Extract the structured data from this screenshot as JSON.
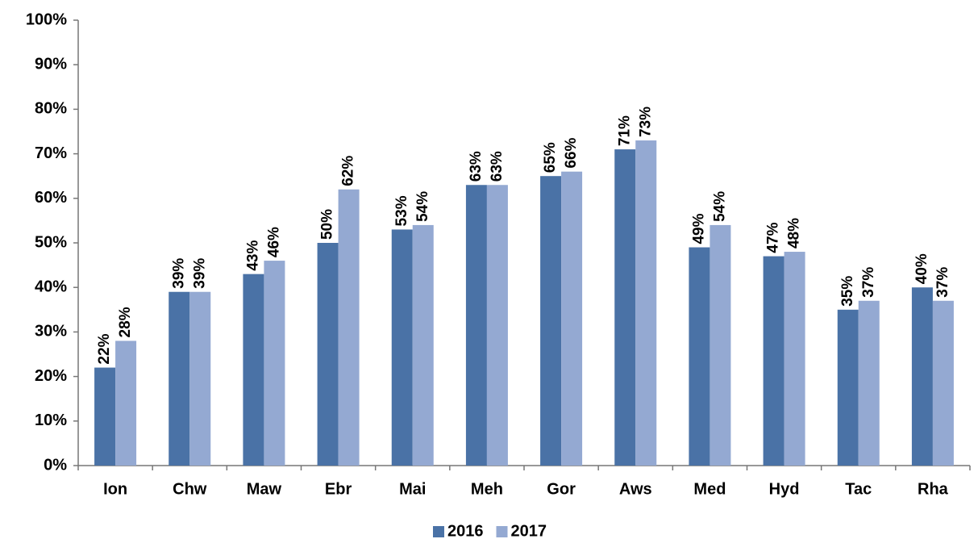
{
  "chart_data": {
    "type": "bar",
    "categories": [
      "Ion",
      "Chw",
      "Maw",
      "Ebr",
      "Mai",
      "Meh",
      "Gor",
      "Aws",
      "Med",
      "Hyd",
      "Tac",
      "Rha"
    ],
    "series": [
      {
        "name": "2016",
        "color": "#4a72a6",
        "values": [
          22,
          39,
          43,
          50,
          53,
          63,
          65,
          71,
          49,
          47,
          35,
          40
        ],
        "value_labels": [
          "22%",
          "39%",
          "43%",
          "50%",
          "53%",
          "63%",
          "65%",
          "71%",
          "49%",
          "47%",
          "35%",
          "40%"
        ]
      },
      {
        "name": "2017",
        "color": "#94a9d2",
        "values": [
          28,
          39,
          46,
          62,
          54,
          63,
          66,
          73,
          54,
          48,
          37,
          37
        ],
        "value_labels": [
          "28%",
          "39%",
          "46%",
          "62%",
          "54%",
          "63%",
          "66%",
          "73%",
          "54%",
          "48%",
          "37%",
          "37%"
        ]
      }
    ],
    "ylim": [
      0,
      100
    ],
    "yticks": [
      {
        "value": 0,
        "label": "0%"
      },
      {
        "value": 10,
        "label": "10%"
      },
      {
        "value": 20,
        "label": "20%"
      },
      {
        "value": 30,
        "label": "30%"
      },
      {
        "value": 40,
        "label": "40%"
      },
      {
        "value": 50,
        "label": "50%"
      },
      {
        "value": 60,
        "label": "60%"
      },
      {
        "value": 70,
        "label": "70%"
      },
      {
        "value": 80,
        "label": "80%"
      },
      {
        "value": 90,
        "label": "90%"
      },
      {
        "value": 100,
        "label": "100%"
      }
    ],
    "grid": false,
    "legend": "bottom"
  }
}
